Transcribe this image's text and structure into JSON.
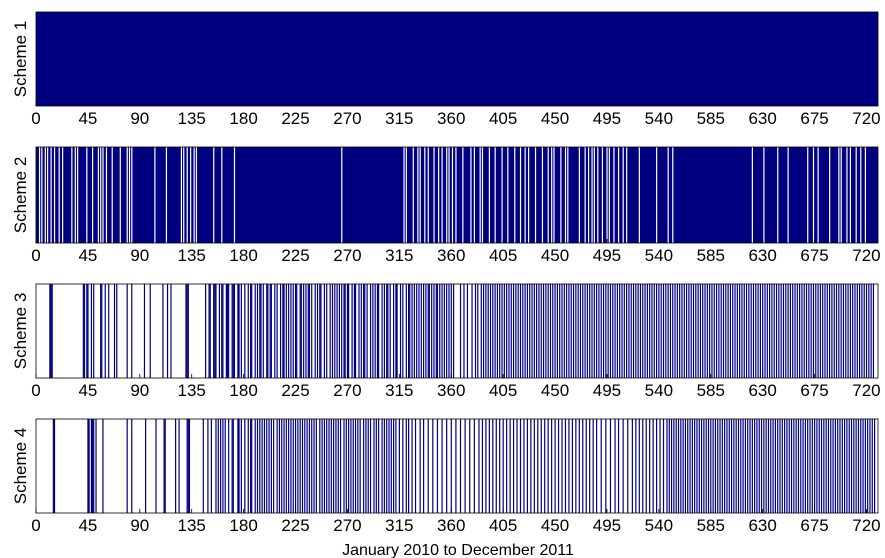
{
  "chart_data": [
    {
      "type": "bar",
      "ylabel": "Scheme 1",
      "xlim": [
        0,
        730
      ],
      "xticks": [
        0,
        45,
        90,
        135,
        180,
        225,
        270,
        315,
        360,
        405,
        450,
        495,
        540,
        585,
        630,
        675,
        720
      ],
      "bar_color": "#000080",
      "events": "all",
      "gaps": []
    },
    {
      "type": "bar",
      "ylabel": "Scheme 2",
      "xlim": [
        0,
        730
      ],
      "xticks": [
        0,
        45,
        90,
        135,
        180,
        225,
        270,
        315,
        360,
        405,
        450,
        495,
        540,
        585,
        630,
        675,
        720
      ],
      "bar_color": "#000080",
      "events": "all",
      "gaps": [
        3,
        5,
        8,
        10,
        13,
        16,
        20,
        23,
        31,
        34,
        36,
        44,
        49,
        54,
        56,
        58,
        61,
        66,
        73,
        79,
        81,
        83,
        103,
        113,
        126,
        128,
        131,
        134,
        137,
        139,
        154,
        161,
        172,
        265,
        319,
        321,
        327,
        331,
        333,
        337,
        340,
        345,
        349,
        352,
        356,
        358,
        361,
        364,
        370,
        377,
        380,
        385,
        387,
        393,
        398,
        404,
        409,
        415,
        420,
        424,
        427,
        433,
        439,
        444,
        447,
        449,
        455,
        459,
        461,
        471,
        476,
        479,
        482,
        484,
        487,
        491,
        495,
        497,
        501,
        505,
        509,
        512,
        523,
        538,
        548,
        552,
        621,
        631,
        643,
        652,
        669,
        674,
        678,
        688,
        696,
        698,
        703,
        706,
        711,
        715,
        719
      ]
    },
    {
      "type": "bar",
      "ylabel": "Scheme 3",
      "xlim": [
        0,
        730
      ],
      "xticks": [
        0,
        45,
        90,
        135,
        180,
        225,
        270,
        315,
        360,
        405,
        450,
        495,
        540,
        585,
        630,
        675,
        720
      ],
      "bar_color": "#000080",
      "events": [
        12,
        13,
        14,
        41,
        42,
        44,
        45,
        48,
        50,
        56,
        57,
        60,
        63,
        68,
        70,
        79,
        83,
        94,
        99,
        110,
        114,
        117,
        130,
        131,
        132,
        147,
        150,
        151,
        154,
        155,
        156,
        159,
        161,
        162,
        165,
        166,
        167,
        170,
        171,
        172,
        175,
        176,
        178,
        181,
        184,
        186,
        187,
        190,
        192,
        194,
        195,
        197,
        200,
        201,
        203,
        204,
        207,
        209,
        212,
        214,
        215,
        217,
        219,
        221,
        223,
        225,
        226,
        229,
        230,
        232,
        234,
        236,
        237,
        239,
        242,
        244,
        246,
        247,
        250,
        252,
        255,
        257,
        259,
        261,
        263,
        265,
        267,
        268,
        270,
        271,
        274,
        276,
        277,
        280,
        282,
        284,
        285,
        287,
        290,
        292,
        294,
        296,
        297,
        300,
        302,
        304,
        305,
        307,
        310,
        312,
        313,
        316,
        318,
        321,
        323,
        324,
        326,
        328,
        330,
        332,
        334,
        336,
        338,
        340,
        341,
        343,
        345,
        347,
        348,
        350,
        352,
        354,
        356,
        358,
        360,
        362,
        368,
        371,
        374,
        378,
        381,
        383,
        386,
        388,
        390,
        392,
        394,
        396,
        398,
        400,
        402,
        404,
        406,
        408,
        410,
        412,
        414,
        416,
        418,
        420,
        422,
        424,
        426,
        428,
        430,
        432,
        434,
        436,
        438,
        440,
        442,
        444,
        446,
        448,
        450,
        452,
        454,
        456,
        458,
        460,
        462,
        464,
        466,
        468,
        470,
        472,
        474,
        476,
        478,
        480,
        482,
        484,
        486,
        488,
        490,
        492,
        494,
        496,
        498,
        500,
        502,
        504,
        506,
        508,
        510,
        512,
        514,
        516,
        518,
        520,
        522,
        524,
        526,
        528,
        530,
        532,
        534,
        536,
        538,
        540,
        542,
        544,
        546,
        548,
        550,
        552,
        554,
        556,
        558,
        560,
        562,
        564,
        566,
        568,
        570,
        572,
        574,
        576,
        578,
        580,
        582,
        584,
        586,
        588,
        590,
        592,
        594,
        596,
        598,
        600,
        602,
        604,
        606,
        608,
        610,
        612,
        614,
        616,
        618,
        620,
        622,
        624,
        626,
        628,
        630,
        632,
        634,
        636,
        638,
        640,
        642,
        644,
        646,
        648,
        650,
        652,
        654,
        656,
        658,
        660,
        662,
        664,
        666,
        668,
        670,
        672,
        674,
        676,
        678,
        680,
        682,
        684,
        686,
        688,
        690,
        692,
        694,
        696,
        698,
        700,
        702,
        704,
        706,
        708,
        710,
        712,
        714,
        716,
        718,
        720,
        722,
        724,
        726
      ],
      "gaps": []
    },
    {
      "type": "bar",
      "ylabel": "Scheme 4",
      "xlim": [
        0,
        730
      ],
      "xticks": [
        0,
        45,
        90,
        135,
        180,
        225,
        270,
        315,
        360,
        405,
        450,
        495,
        540,
        585,
        630,
        675,
        720
      ],
      "bar_color": "#000080",
      "events": [
        15,
        16,
        45,
        46,
        48,
        49,
        50,
        52,
        58,
        79,
        83,
        95,
        104,
        111,
        112,
        121,
        124,
        131,
        132,
        133,
        145,
        149,
        152,
        156,
        158,
        160,
        162,
        164,
        167,
        170,
        171,
        175,
        176,
        178,
        181,
        184,
        186,
        187,
        190,
        192,
        194,
        196,
        198,
        200,
        202,
        204,
        206,
        209,
        211,
        213,
        215,
        217,
        219,
        221,
        223,
        225,
        227,
        229,
        231,
        233,
        235,
        237,
        239,
        241,
        243,
        246,
        248,
        250,
        252,
        254,
        256,
        258,
        260,
        262,
        264,
        267,
        269,
        271,
        273,
        275,
        277,
        279,
        281,
        284,
        286,
        288,
        290,
        293,
        295,
        297,
        300,
        302,
        304,
        306,
        308,
        310,
        312,
        315,
        318,
        321,
        323,
        326,
        329,
        333,
        336,
        340,
        344,
        348,
        352,
        356,
        360,
        364,
        368,
        372,
        376,
        380,
        384,
        387,
        390,
        393,
        396,
        399,
        402,
        405,
        408,
        411,
        414,
        417,
        420,
        423,
        426,
        429,
        432,
        435,
        438,
        441,
        444,
        447,
        450,
        453,
        456,
        459,
        462,
        465,
        468,
        471,
        474,
        477,
        480,
        483,
        486,
        490,
        494,
        498,
        502,
        505,
        509,
        513,
        517,
        520,
        523,
        526,
        529,
        532,
        535,
        538,
        541,
        544,
        547,
        549,
        551,
        553,
        555,
        557,
        559,
        561,
        563,
        565,
        567,
        569,
        571,
        573,
        575,
        577,
        579,
        581,
        583,
        585,
        587,
        589,
        591,
        593,
        595,
        597,
        599,
        601,
        603,
        605,
        607,
        609,
        611,
        613,
        615,
        617,
        619,
        621,
        623,
        625,
        627,
        629,
        631,
        633,
        635,
        637,
        639,
        641,
        643,
        645,
        647,
        649,
        651,
        653,
        655,
        657,
        659,
        661,
        663,
        665,
        667,
        669,
        671,
        673,
        675,
        677,
        679,
        681,
        683,
        685,
        687,
        689,
        691,
        693,
        695,
        697,
        699,
        701,
        703,
        705,
        707,
        709,
        711,
        713,
        715,
        717,
        719,
        721,
        723,
        725,
        727
      ],
      "gaps": []
    }
  ],
  "xlabel": "January 2010 to December 2011"
}
